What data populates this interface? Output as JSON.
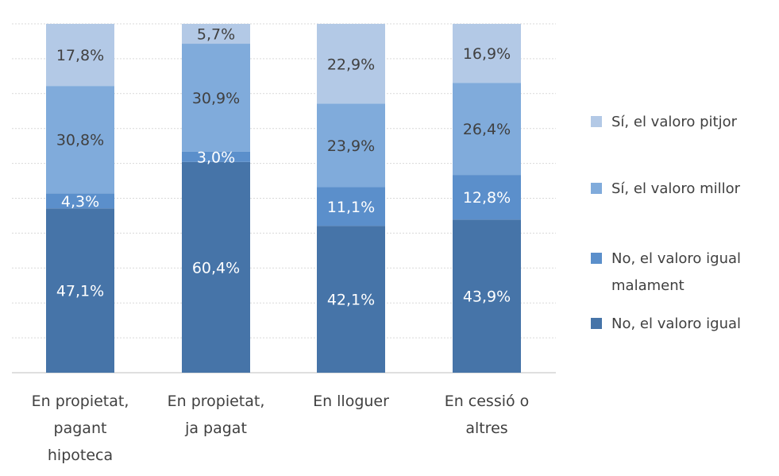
{
  "chart_data": {
    "type": "bar",
    "stacked": true,
    "stack_mode": "percent",
    "categories": [
      [
        "En propietat,",
        "pagant",
        "hipoteca"
      ],
      [
        "En propietat,",
        "ja pagat"
      ],
      [
        "En lloguer"
      ],
      [
        "En cessió o",
        "altres"
      ]
    ],
    "series": [
      {
        "name": [
          "No, el valoro igual"
        ],
        "color": "#4674a8",
        "values": [
          "47,1%",
          "60,4%",
          "42,1%",
          "43,9%"
        ],
        "numeric": [
          47.1,
          60.4,
          42.1,
          43.9
        ]
      },
      {
        "name": [
          "No, el valoro igual",
          "malament"
        ],
        "color": "#5b8fcb",
        "values": [
          "4,3%",
          "3,0%",
          "11,1%",
          "12,8%"
        ],
        "numeric": [
          4.3,
          3.0,
          11.1,
          12.8
        ]
      },
      {
        "name": [
          "Sí, el valoro millor"
        ],
        "color": "#80abdb",
        "values": [
          "30,8%",
          "30,9%",
          "23,9%",
          "26,4%"
        ],
        "numeric": [
          30.8,
          30.9,
          23.9,
          26.4
        ]
      },
      {
        "name": [
          "Sí, el valoro pitjor"
        ],
        "color": "#b3c9e6",
        "values": [
          "17,8%",
          "5,7%",
          "22,9%",
          "16,9%"
        ],
        "numeric": [
          17.8,
          5.7,
          22.9,
          16.9
        ]
      }
    ],
    "ylim": [
      0,
      100
    ],
    "grid": true,
    "legend_position": "right"
  }
}
